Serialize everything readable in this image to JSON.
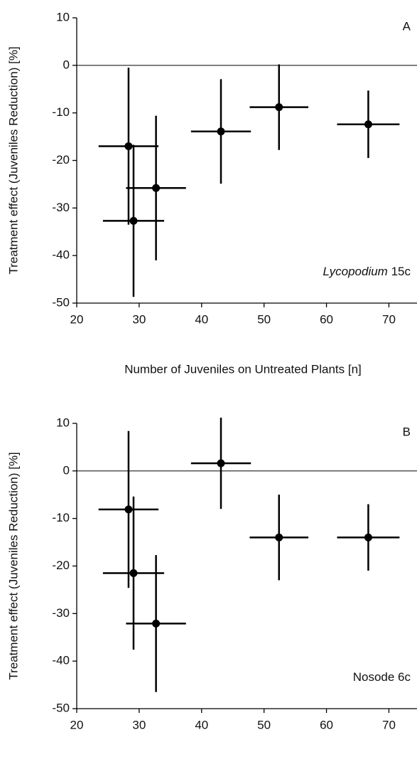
{
  "chart_data": [
    {
      "type": "scatter",
      "title": "A",
      "annotation": [
        "Lycopodium",
        "15c"
      ],
      "annotation_italic": [
        true,
        false
      ],
      "x_label": "Number of Juveniles on Untreated Plants [n]",
      "y_label": "Treatment effect (Juveniles Reduction) [%]",
      "xlim": [
        20,
        74.5
      ],
      "ylim": [
        -50,
        10
      ],
      "xticks": [
        20,
        30,
        40,
        50,
        60,
        70
      ],
      "yticks": [
        -50,
        -40,
        -30,
        -20,
        -10,
        0,
        10
      ],
      "reference_line": 0,
      "color": "#000000",
      "series": [
        {
          "x": [
            28.3,
            29.1,
            32.7,
            43.1,
            52.4,
            66.7
          ],
          "values": [
            -17.0,
            -32.7,
            -25.8,
            -13.9,
            -8.8,
            -12.4
          ],
          "x_errors": [
            4.8,
            4.9,
            4.8,
            4.8,
            4.7,
            5.0
          ],
          "y_errors": [
            16.5,
            16.0,
            15.2,
            11.0,
            9.0,
            7.1
          ]
        }
      ]
    },
    {
      "type": "scatter",
      "title": "B",
      "annotation": [
        "Nosode 6c"
      ],
      "annotation_italic": [
        false
      ],
      "x_label": "Number of Juveniles on Untreated Plants [n]",
      "y_label": "Treatment effect (Juveniles Reduction) [%]",
      "xlim": [
        20,
        74.5
      ],
      "ylim": [
        -50,
        10
      ],
      "xticks": [
        20,
        30,
        40,
        50,
        60,
        70
      ],
      "yticks": [
        -50,
        -40,
        -30,
        -20,
        -10,
        0,
        10
      ],
      "reference_line": 0,
      "color": "#000000",
      "series": [
        {
          "x": [
            28.3,
            29.1,
            32.7,
            43.1,
            52.4,
            66.7
          ],
          "values": [
            -8.1,
            -21.5,
            -32.1,
            1.6,
            -14.0,
            -14.0
          ],
          "x_errors": [
            4.8,
            4.9,
            4.8,
            4.8,
            4.7,
            5.0
          ],
          "y_errors": [
            16.5,
            16.1,
            14.4,
            9.6,
            9.0,
            7.0
          ]
        }
      ]
    }
  ]
}
